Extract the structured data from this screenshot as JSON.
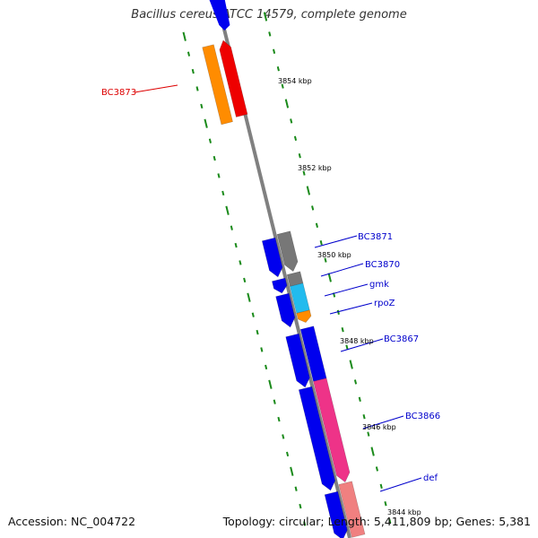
{
  "title": "Bacillus cereus ATCC 14579, complete genome",
  "footer": {
    "accession": "Accession: NC_004722",
    "summary": "Topology: circular; Length: 5,411,809 bp; Genes: 5,381"
  },
  "colors": {
    "backbone": "#808080",
    "tick": "#1a8a1a",
    "blue": "#0000ee",
    "gray": "#777777",
    "cyan": "#22bbee",
    "orange": "#ff8c00",
    "red": "#ee0000",
    "pink": "#ee3388",
    "salmon": "#f08080"
  },
  "scale_labels": [
    "3854 kbp",
    "3852 kbp",
    "3850 kbp",
    "3848 kbp",
    "3846 kbp",
    "3844 kbp"
  ],
  "gene_labels": [
    {
      "name": "BC3873",
      "color": "#dd0000"
    },
    {
      "name": "BC3871",
      "color": "#0000cc"
    },
    {
      "name": "BC3870",
      "color": "#0000cc"
    },
    {
      "name": "gmk",
      "color": "#0000cc"
    },
    {
      "name": "rpoZ",
      "color": "#0000cc"
    },
    {
      "name": "BC3867",
      "color": "#0000cc"
    },
    {
      "name": "BC3866",
      "color": "#0000cc"
    },
    {
      "name": "def",
      "color": "#0000cc"
    }
  ]
}
